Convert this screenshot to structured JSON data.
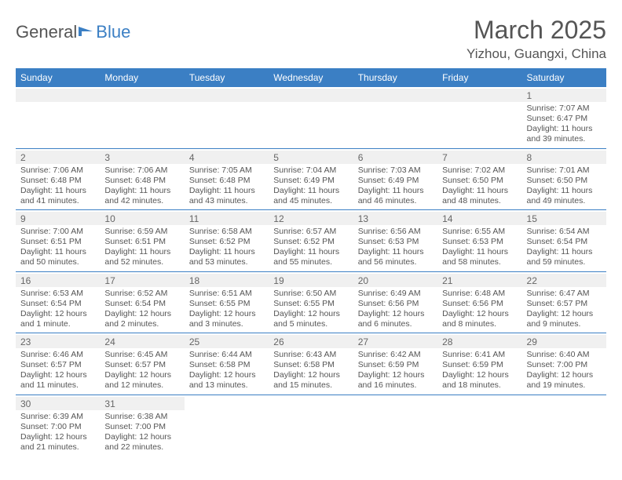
{
  "logo": {
    "text1": "General",
    "text2": "Blue"
  },
  "title": "March 2025",
  "location": "Yizhou, Guangxi, China",
  "dayHeaders": [
    "Sunday",
    "Monday",
    "Tuesday",
    "Wednesday",
    "Thursday",
    "Friday",
    "Saturday"
  ],
  "colors": {
    "headerBg": "#3b7fc4",
    "headerText": "#ffffff",
    "bodyText": "#555555",
    "altRow": "#f0f0f0"
  },
  "weeks": [
    [
      null,
      null,
      null,
      null,
      null,
      null,
      {
        "n": "1",
        "sr": "Sunrise: 7:07 AM",
        "ss": "Sunset: 6:47 PM",
        "dl": "Daylight: 11 hours and 39 minutes."
      }
    ],
    [
      {
        "n": "2",
        "sr": "Sunrise: 7:06 AM",
        "ss": "Sunset: 6:48 PM",
        "dl": "Daylight: 11 hours and 41 minutes."
      },
      {
        "n": "3",
        "sr": "Sunrise: 7:06 AM",
        "ss": "Sunset: 6:48 PM",
        "dl": "Daylight: 11 hours and 42 minutes."
      },
      {
        "n": "4",
        "sr": "Sunrise: 7:05 AM",
        "ss": "Sunset: 6:48 PM",
        "dl": "Daylight: 11 hours and 43 minutes."
      },
      {
        "n": "5",
        "sr": "Sunrise: 7:04 AM",
        "ss": "Sunset: 6:49 PM",
        "dl": "Daylight: 11 hours and 45 minutes."
      },
      {
        "n": "6",
        "sr": "Sunrise: 7:03 AM",
        "ss": "Sunset: 6:49 PM",
        "dl": "Daylight: 11 hours and 46 minutes."
      },
      {
        "n": "7",
        "sr": "Sunrise: 7:02 AM",
        "ss": "Sunset: 6:50 PM",
        "dl": "Daylight: 11 hours and 48 minutes."
      },
      {
        "n": "8",
        "sr": "Sunrise: 7:01 AM",
        "ss": "Sunset: 6:50 PM",
        "dl": "Daylight: 11 hours and 49 minutes."
      }
    ],
    [
      {
        "n": "9",
        "sr": "Sunrise: 7:00 AM",
        "ss": "Sunset: 6:51 PM",
        "dl": "Daylight: 11 hours and 50 minutes."
      },
      {
        "n": "10",
        "sr": "Sunrise: 6:59 AM",
        "ss": "Sunset: 6:51 PM",
        "dl": "Daylight: 11 hours and 52 minutes."
      },
      {
        "n": "11",
        "sr": "Sunrise: 6:58 AM",
        "ss": "Sunset: 6:52 PM",
        "dl": "Daylight: 11 hours and 53 minutes."
      },
      {
        "n": "12",
        "sr": "Sunrise: 6:57 AM",
        "ss": "Sunset: 6:52 PM",
        "dl": "Daylight: 11 hours and 55 minutes."
      },
      {
        "n": "13",
        "sr": "Sunrise: 6:56 AM",
        "ss": "Sunset: 6:53 PM",
        "dl": "Daylight: 11 hours and 56 minutes."
      },
      {
        "n": "14",
        "sr": "Sunrise: 6:55 AM",
        "ss": "Sunset: 6:53 PM",
        "dl": "Daylight: 11 hours and 58 minutes."
      },
      {
        "n": "15",
        "sr": "Sunrise: 6:54 AM",
        "ss": "Sunset: 6:54 PM",
        "dl": "Daylight: 11 hours and 59 minutes."
      }
    ],
    [
      {
        "n": "16",
        "sr": "Sunrise: 6:53 AM",
        "ss": "Sunset: 6:54 PM",
        "dl": "Daylight: 12 hours and 1 minute."
      },
      {
        "n": "17",
        "sr": "Sunrise: 6:52 AM",
        "ss": "Sunset: 6:54 PM",
        "dl": "Daylight: 12 hours and 2 minutes."
      },
      {
        "n": "18",
        "sr": "Sunrise: 6:51 AM",
        "ss": "Sunset: 6:55 PM",
        "dl": "Daylight: 12 hours and 3 minutes."
      },
      {
        "n": "19",
        "sr": "Sunrise: 6:50 AM",
        "ss": "Sunset: 6:55 PM",
        "dl": "Daylight: 12 hours and 5 minutes."
      },
      {
        "n": "20",
        "sr": "Sunrise: 6:49 AM",
        "ss": "Sunset: 6:56 PM",
        "dl": "Daylight: 12 hours and 6 minutes."
      },
      {
        "n": "21",
        "sr": "Sunrise: 6:48 AM",
        "ss": "Sunset: 6:56 PM",
        "dl": "Daylight: 12 hours and 8 minutes."
      },
      {
        "n": "22",
        "sr": "Sunrise: 6:47 AM",
        "ss": "Sunset: 6:57 PM",
        "dl": "Daylight: 12 hours and 9 minutes."
      }
    ],
    [
      {
        "n": "23",
        "sr": "Sunrise: 6:46 AM",
        "ss": "Sunset: 6:57 PM",
        "dl": "Daylight: 12 hours and 11 minutes."
      },
      {
        "n": "24",
        "sr": "Sunrise: 6:45 AM",
        "ss": "Sunset: 6:57 PM",
        "dl": "Daylight: 12 hours and 12 minutes."
      },
      {
        "n": "25",
        "sr": "Sunrise: 6:44 AM",
        "ss": "Sunset: 6:58 PM",
        "dl": "Daylight: 12 hours and 13 minutes."
      },
      {
        "n": "26",
        "sr": "Sunrise: 6:43 AM",
        "ss": "Sunset: 6:58 PM",
        "dl": "Daylight: 12 hours and 15 minutes."
      },
      {
        "n": "27",
        "sr": "Sunrise: 6:42 AM",
        "ss": "Sunset: 6:59 PM",
        "dl": "Daylight: 12 hours and 16 minutes."
      },
      {
        "n": "28",
        "sr": "Sunrise: 6:41 AM",
        "ss": "Sunset: 6:59 PM",
        "dl": "Daylight: 12 hours and 18 minutes."
      },
      {
        "n": "29",
        "sr": "Sunrise: 6:40 AM",
        "ss": "Sunset: 7:00 PM",
        "dl": "Daylight: 12 hours and 19 minutes."
      }
    ],
    [
      {
        "n": "30",
        "sr": "Sunrise: 6:39 AM",
        "ss": "Sunset: 7:00 PM",
        "dl": "Daylight: 12 hours and 21 minutes."
      },
      {
        "n": "31",
        "sr": "Sunrise: 6:38 AM",
        "ss": "Sunset: 7:00 PM",
        "dl": "Daylight: 12 hours and 22 minutes."
      },
      null,
      null,
      null,
      null,
      null
    ]
  ]
}
